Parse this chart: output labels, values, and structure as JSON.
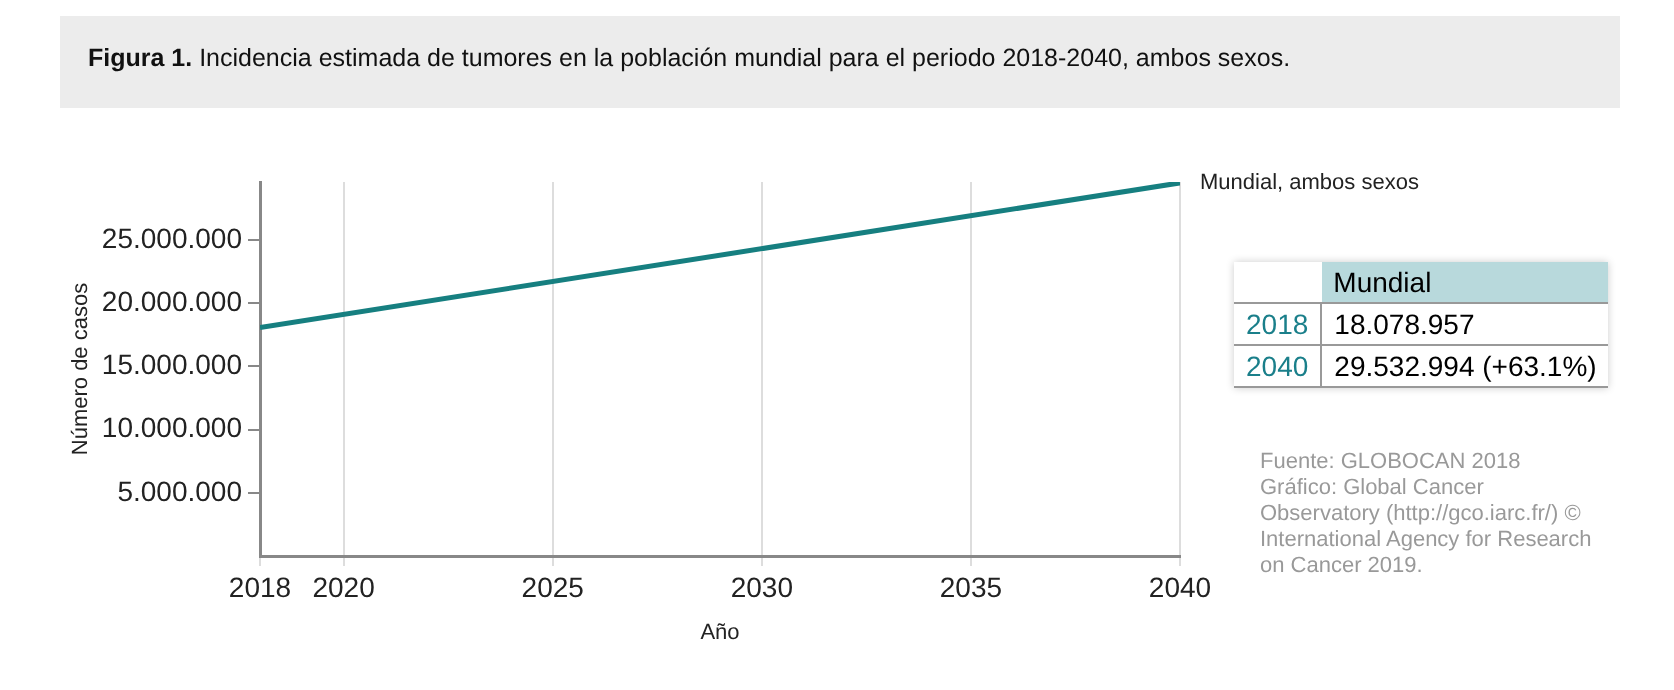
{
  "chart_data": {
    "type": "line",
    "title": "Figura 1. Incidencia estimada de tumores en la población mundial para el periodo 2018-2040,  ambos sexos.",
    "xlabel": "Año",
    "ylabel": "Número de casos",
    "x": [
      2018,
      2040
    ],
    "series": [
      {
        "name": "Mundial, ambos sexos",
        "color": "#167f80",
        "values": [
          18078957,
          29532994
        ]
      }
    ],
    "xlim": [
      2018,
      2040
    ],
    "xticks": [
      2018,
      2020,
      2025,
      2030,
      2035,
      2040
    ],
    "ylim": [
      0,
      29600000
    ],
    "yticks": [
      {
        "value": 5000000,
        "label": "5.000.000"
      },
      {
        "value": 10000000,
        "label": "10.000.000"
      },
      {
        "value": 15000000,
        "label": "15.000.000"
      },
      {
        "value": 20000000,
        "label": "20.000.000"
      },
      {
        "value": 25000000,
        "label": "25.000.000"
      }
    ],
    "grid": "x",
    "legend": false,
    "marker": "none",
    "line_style": "solid",
    "annotations": [
      "Mundial",
      "2018",
      "18.078.957",
      "2040",
      "29.532.994 (+63.1%)",
      "Fuente: GLOBOCAN 2018 Gráfico: Global Cancer Observatory (http://gco.iarc.fr/) © International Agency for Research on Cancer 2019."
    ]
  }
}
